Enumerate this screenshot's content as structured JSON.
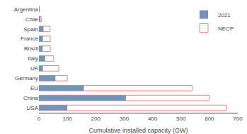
{
  "chart_data": {
    "type": "bar",
    "orientation": "horizontal",
    "categories": [
      "USA",
      "China",
      "EU",
      "Germany",
      "UK",
      "Italy",
      "Brazil",
      "France",
      "Spain",
      "Chile",
      "Argentina"
    ],
    "series": [
      {
        "name": "2021",
        "color": "#7393b7",
        "values": [
          100,
          306,
          158,
          58,
          14,
          22,
          13,
          14,
          16,
          4,
          1
        ]
      },
      {
        "name": "NECP",
        "color": "#f28080",
        "values": [
          660,
          600,
          540,
          100,
          70,
          52,
          40,
          40,
          39,
          8,
          1
        ]
      }
    ],
    "xlabel": "Cumulative installed capacity (GW)",
    "xlim": [
      0,
      700
    ],
    "xticks": [
      0,
      100,
      200,
      300,
      400,
      500,
      600,
      700
    ],
    "grid": false,
    "legend": "upper right"
  }
}
